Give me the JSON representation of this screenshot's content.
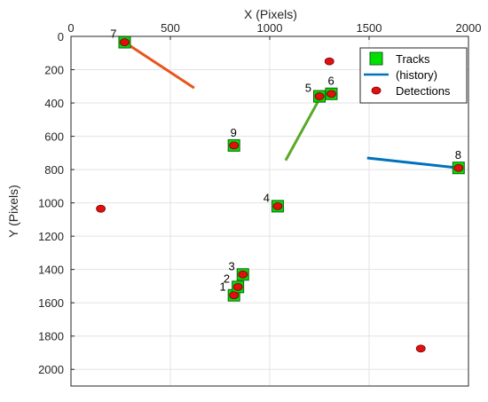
{
  "chart_data": {
    "type": "scatter",
    "xlabel": "X (Pixels)",
    "ylabel": "Y (Pixels)",
    "xlim": [
      0,
      2000
    ],
    "ylim": [
      0,
      2100
    ],
    "y_inverted": true,
    "x_axis_position": "top",
    "grid": true,
    "xticks": [
      0,
      500,
      1000,
      1500,
      2000
    ],
    "yticks": [
      0,
      200,
      400,
      600,
      800,
      1000,
      1200,
      1400,
      1600,
      1800,
      2000
    ],
    "legend": {
      "placement": "top-right",
      "entries": [
        {
          "label": "Tracks",
          "kind": "square",
          "color": "#00e000"
        },
        {
          "label": "(history)",
          "kind": "line",
          "color": "#0072bd"
        },
        {
          "label": "Detections",
          "kind": "dot",
          "color": "#e01010"
        }
      ]
    },
    "tracks": [
      {
        "id": "1",
        "x": 820,
        "y": 1555
      },
      {
        "id": "2",
        "x": 840,
        "y": 1505
      },
      {
        "id": "3",
        "x": 865,
        "y": 1430
      },
      {
        "id": "4",
        "x": 1040,
        "y": 1020
      },
      {
        "id": "5",
        "x": 1250,
        "y": 360
      },
      {
        "id": "6",
        "x": 1310,
        "y": 345
      },
      {
        "id": "7",
        "x": 270,
        "y": 35
      },
      {
        "id": "8",
        "x": 1950,
        "y": 790
      },
      {
        "id": "9",
        "x": 820,
        "y": 655
      }
    ],
    "detections": [
      {
        "x": 820,
        "y": 1555
      },
      {
        "x": 840,
        "y": 1505
      },
      {
        "x": 865,
        "y": 1430
      },
      {
        "x": 1040,
        "y": 1020
      },
      {
        "x": 1250,
        "y": 360
      },
      {
        "x": 1310,
        "y": 345
      },
      {
        "x": 270,
        "y": 35
      },
      {
        "x": 1950,
        "y": 790
      },
      {
        "x": 820,
        "y": 655
      },
      {
        "x": 1300,
        "y": 150
      },
      {
        "x": 150,
        "y": 1035
      },
      {
        "x": 1760,
        "y": 1875
      }
    ],
    "histories": [
      {
        "track": "7",
        "color": "#e8541c",
        "points": [
          [
            270,
            35
          ],
          [
            620,
            310
          ]
        ]
      },
      {
        "track": "5",
        "color": "#5ba829",
        "points": [
          [
            1255,
            365
          ],
          [
            1080,
            745
          ]
        ]
      },
      {
        "track": "8",
        "color": "#0072bd",
        "points": [
          [
            1950,
            790
          ],
          [
            1490,
            730
          ]
        ]
      }
    ]
  }
}
